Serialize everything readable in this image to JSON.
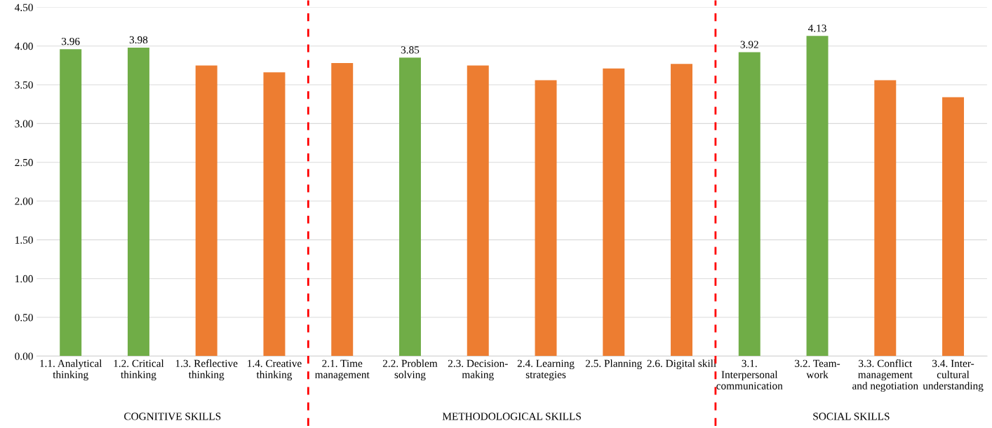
{
  "chart_data": {
    "type": "bar",
    "categories": [
      "1.1. Analytical\nthinking",
      "1.2. Critical\nthinking",
      "1.3. Reflective\nthinking",
      "1.4. Creative\nthinking",
      "2.1. Time\nmanagement",
      "2.2. Problem\nsolving",
      "2.3. Decision-\nmaking",
      "2.4. Learning\nstrategies",
      "2.5. Planning",
      "2.6. Digital skill",
      "3.1.\nInterpersonal\ncommunication",
      "3.2. Team-\nwork",
      "3.3. Conflict\nmanagement\nand negotiation",
      "3.4. Inter-\ncultural\nunderstanding"
    ],
    "values": [
      3.96,
      3.98,
      3.75,
      3.66,
      3.78,
      3.85,
      3.75,
      3.56,
      3.71,
      3.77,
      3.92,
      4.13,
      3.56,
      3.34
    ],
    "value_labels": [
      "3.96",
      "3.98",
      null,
      null,
      null,
      "3.85",
      null,
      null,
      null,
      null,
      "3.92",
      "4.13",
      null,
      null
    ],
    "colors": [
      "#70ad47",
      "#70ad47",
      "#ed7d31",
      "#ed7d31",
      "#ed7d31",
      "#70ad47",
      "#ed7d31",
      "#ed7d31",
      "#ed7d31",
      "#ed7d31",
      "#70ad47",
      "#70ad47",
      "#ed7d31",
      "#ed7d31"
    ],
    "ylim": [
      0,
      4.5
    ],
    "yticks": [
      {
        "value": 0,
        "label": "0.00"
      },
      {
        "value": 0.5,
        "label": "0.50"
      },
      {
        "value": 1,
        "label": "1.00"
      },
      {
        "value": 1.5,
        "label": "1.50"
      },
      {
        "value": 2,
        "label": "2.00"
      },
      {
        "value": 2.5,
        "label": "2.50"
      },
      {
        "value": 3,
        "label": "3.00"
      },
      {
        "value": 3.5,
        "label": "3.50"
      },
      {
        "value": 4,
        "label": "4.00"
      },
      {
        "value": 4.5,
        "label": "4.50"
      }
    ],
    "grid": "y",
    "annotations": [
      "COGNITIVE SKILLS",
      "METHODOLOGICAL SKILLS",
      "SOCIAL SKILLS"
    ]
  }
}
